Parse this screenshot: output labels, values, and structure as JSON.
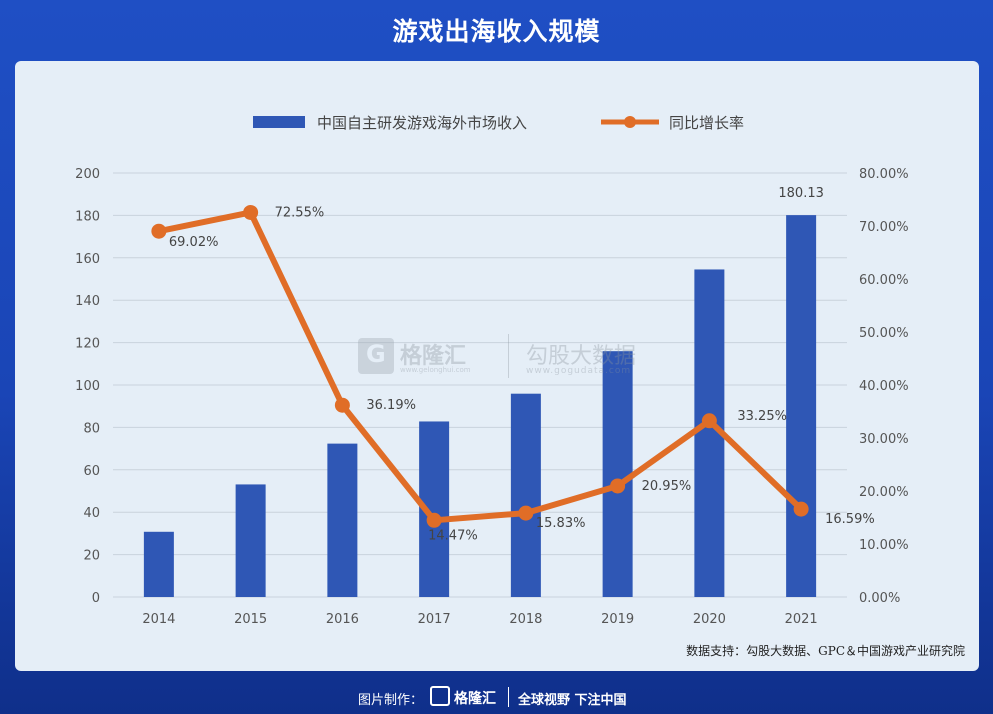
{
  "title": "游戏出海收入规模",
  "chart_data": {
    "type": "bar+line",
    "categories": [
      "2014",
      "2015",
      "2016",
      "2017",
      "2018",
      "2019",
      "2020",
      "2021"
    ],
    "series": [
      {
        "name": "中国自主研发游戏海外市场收入",
        "type": "bar",
        "axis": "left",
        "color": "#2f57b5",
        "values": [
          30.76,
          53.1,
          72.35,
          82.8,
          95.9,
          115.95,
          154.5,
          180.13
        ]
      },
      {
        "name": "同比增长率",
        "type": "line",
        "axis": "right",
        "color": "#e06d27",
        "values": [
          69.02,
          72.55,
          36.19,
          14.47,
          15.83,
          20.95,
          33.25,
          16.59
        ]
      }
    ],
    "bar_labels": [
      {
        "index": 7,
        "text": "180.13"
      }
    ],
    "line_labels": [
      "69.02%",
      "72.55%",
      "36.19%",
      "14.47%",
      "15.83%",
      "20.95%",
      "33.25%",
      "16.59%"
    ],
    "y_left": {
      "min": 0,
      "max": 200,
      "step": 20,
      "ticks": [
        "0",
        "20",
        "40",
        "60",
        "80",
        "100",
        "120",
        "140",
        "160",
        "180",
        "200"
      ]
    },
    "y_right": {
      "min": 0,
      "max": 80,
      "step": 10,
      "ticks": [
        "0.00%",
        "10.00%",
        "20.00%",
        "30.00%",
        "40.00%",
        "50.00%",
        "60.00%",
        "70.00%",
        "80.00%"
      ]
    },
    "grid": true,
    "legend_position": "top-center"
  },
  "source": "数据支持：勾股大数据、GPC＆中国游戏产业研究院",
  "watermark": {
    "brand1": "格隆汇",
    "url1": "www.gelonghui.com",
    "brand2": "勾股大数据",
    "url2": "www.gogudata.com",
    "logo_letter": "G"
  },
  "footer": {
    "made_by": "图片制作：",
    "brand": "格隆汇",
    "slogan": "全球视野 下注中国"
  }
}
